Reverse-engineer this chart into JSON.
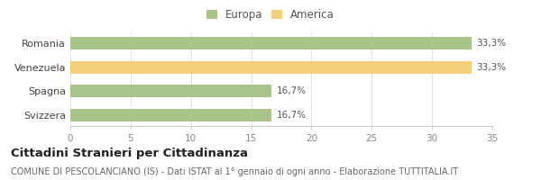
{
  "categories": [
    "Romania",
    "Venezuela",
    "Spagna",
    "Svizzera"
  ],
  "values": [
    33.3,
    33.3,
    16.7,
    16.7
  ],
  "colors": [
    "#a8c48a",
    "#f5d07a",
    "#a8c48a",
    "#a8c48a"
  ],
  "labels": [
    "33,3%",
    "33,3%",
    "16,7%",
    "16,7%"
  ],
  "xlim": [
    0,
    35
  ],
  "xticks": [
    0,
    5,
    10,
    15,
    20,
    25,
    30,
    35
  ],
  "legend_items": [
    {
      "label": "Europa",
      "color": "#a8c48a"
    },
    {
      "label": "America",
      "color": "#f5d07a"
    }
  ],
  "title": "Cittadini Stranieri per Cittadinanza",
  "subtitle": "COMUNE DI PESCOLANCIANO (IS) - Dati ISTAT al 1° gennaio di ogni anno - Elaborazione TUTTITALIA.IT",
  "bg_color": "#ffffff",
  "bar_height": 0.52,
  "label_fontsize": 7.5,
  "title_fontsize": 9.5,
  "subtitle_fontsize": 7,
  "tick_fontsize": 7.5,
  "ytick_fontsize": 8
}
